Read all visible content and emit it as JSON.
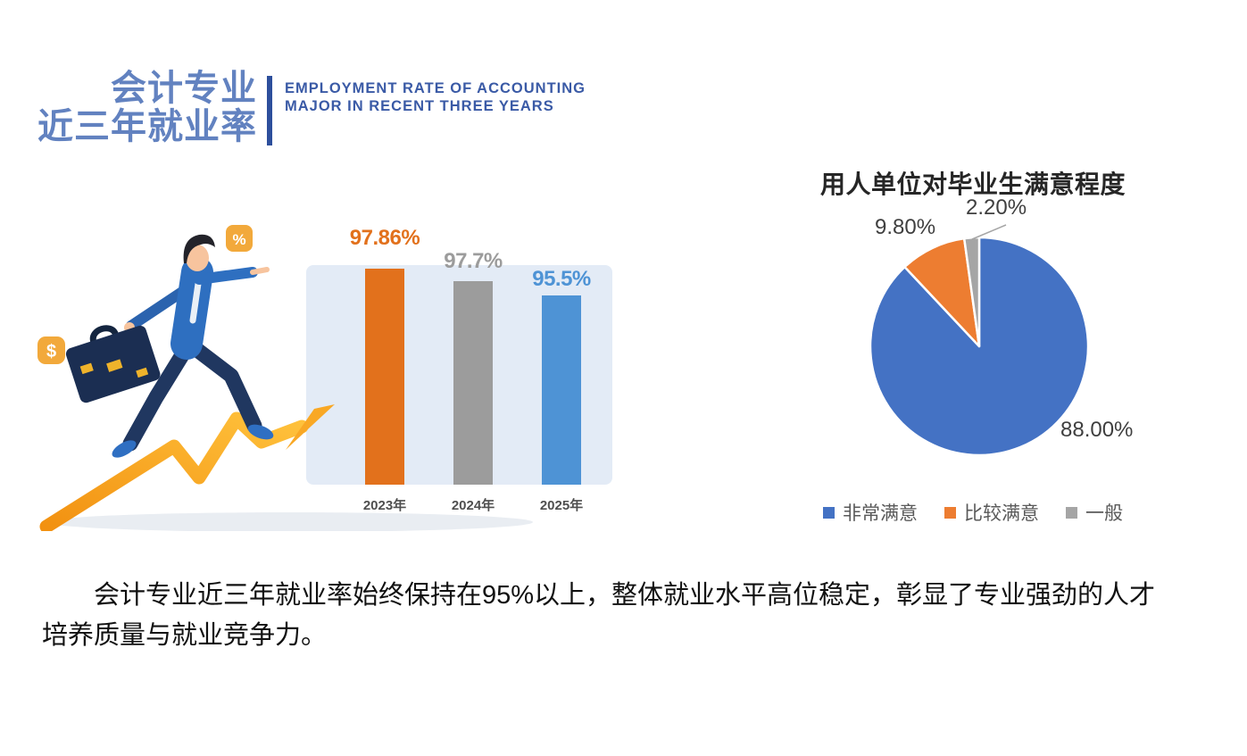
{
  "header": {
    "title_cn_line1": "会计专业",
    "title_cn_line2": "近三年就业率",
    "title_en_line1": "EMPLOYMENT RATE OF ACCOUNTING",
    "title_en_line2": "MAJOR IN RECENT THREE YEARS"
  },
  "illustration": {
    "dollar_badge_label": "$",
    "percent_badge_label": "%"
  },
  "chart_data": [
    {
      "type": "bar",
      "title": "",
      "categories": [
        "2023年",
        "2024年",
        "2025年"
      ],
      "values": [
        97.86,
        97.7,
        95.5
      ],
      "value_labels": [
        "97.86%",
        "97.7%",
        "95.5%"
      ],
      "bar_colors": [
        "#E2711C",
        "#9C9C9C",
        "#4E93D5"
      ],
      "panel_color": "#E3EBF6",
      "xlabel": "",
      "ylabel": "",
      "grid": false,
      "legend": false
    },
    {
      "type": "pie",
      "title": "用人单位对毕业生满意程度",
      "slices": [
        {
          "label": "非常满意",
          "value": 88.0,
          "display": "88.00%",
          "color": "#4472C4"
        },
        {
          "label": "比较满意",
          "value": 9.8,
          "display": "9.80%",
          "color": "#ED7D31"
        },
        {
          "label": "一般",
          "value": 2.2,
          "display": "2.20%",
          "color": "#A5A5A5"
        }
      ],
      "start_angle_deg": 0,
      "direction": "clockwise",
      "legend_position": "bottom"
    }
  ],
  "body_text": "会计专业近三年就业率始终保持在95%以上，整体就业水平高位稳定，彰显了专业强劲的人才培养质量与就业竞争力。",
  "theme": {
    "title_blue": "#6282C0",
    "divider_blue": "#2D4F9C",
    "subtitle_blue": "#3A5AA6",
    "arrow_orange": "#F6A11E",
    "badge_orange": "#F2A93B"
  }
}
